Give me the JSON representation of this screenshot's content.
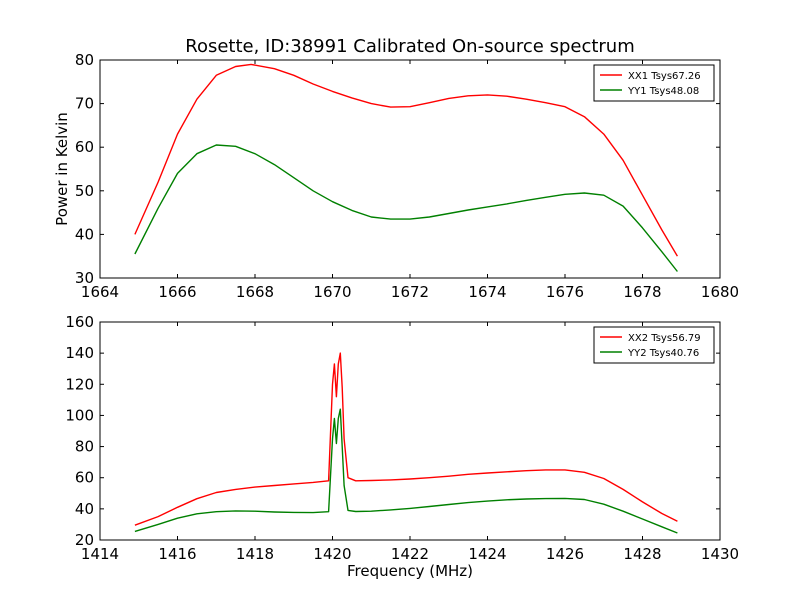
{
  "chart_data": [
    {
      "type": "line",
      "title": "Rosette, ID:38991 Calibrated On-source spectrum",
      "xlabel": "",
      "ylabel": "Power in Kelvin",
      "xlim": [
        1664,
        1680
      ],
      "ylim": [
        30,
        80
      ],
      "xticks": [
        "1664",
        "1666",
        "1668",
        "1670",
        "1672",
        "1674",
        "1676",
        "1678",
        "1680"
      ],
      "yticks": [
        "30",
        "40",
        "50",
        "60",
        "70",
        "80"
      ],
      "grid": false,
      "legend": "top-right",
      "series": [
        {
          "name": "XX1 Tsys67.26",
          "color": "#ff0000",
          "x": [
            1664.9,
            1665.5,
            1666.0,
            1666.5,
            1667.0,
            1667.5,
            1667.9,
            1668.5,
            1669.0,
            1669.5,
            1670.0,
            1670.5,
            1671.0,
            1671.5,
            1672.0,
            1672.5,
            1673.0,
            1673.5,
            1674.0,
            1674.5,
            1675.0,
            1675.5,
            1676.0,
            1676.5,
            1677.0,
            1677.5,
            1678.0,
            1678.5,
            1678.9
          ],
          "y": [
            40.0,
            52.0,
            63.0,
            71.0,
            76.5,
            78.5,
            79.0,
            78.0,
            76.5,
            74.5,
            72.8,
            71.3,
            70.0,
            69.2,
            69.3,
            70.2,
            71.2,
            71.8,
            72.0,
            71.7,
            71.0,
            70.2,
            69.3,
            67.0,
            63.0,
            57.0,
            49.0,
            41.0,
            35.0
          ]
        },
        {
          "name": "YY1 Tsys48.08",
          "color": "#008000",
          "x": [
            1664.9,
            1665.5,
            1666.0,
            1666.5,
            1667.0,
            1667.5,
            1668.0,
            1668.5,
            1669.0,
            1669.5,
            1670.0,
            1670.5,
            1671.0,
            1671.5,
            1672.0,
            1672.5,
            1673.0,
            1673.5,
            1674.0,
            1674.5,
            1675.0,
            1675.5,
            1676.0,
            1676.5,
            1677.0,
            1677.5,
            1678.0,
            1678.5,
            1678.9
          ],
          "y": [
            35.5,
            46.0,
            54.0,
            58.5,
            60.5,
            60.2,
            58.5,
            56.0,
            53.0,
            50.0,
            47.5,
            45.5,
            44.0,
            43.5,
            43.5,
            44.0,
            44.8,
            45.6,
            46.3,
            47.0,
            47.8,
            48.5,
            49.2,
            49.5,
            49.0,
            46.5,
            41.5,
            36.0,
            31.5
          ]
        }
      ]
    },
    {
      "type": "line",
      "title": "",
      "xlabel": "Frequency (MHz)",
      "ylabel": "",
      "xlim": [
        1414,
        1430
      ],
      "ylim": [
        20,
        160
      ],
      "xticks": [
        "1414",
        "1416",
        "1418",
        "1420",
        "1422",
        "1424",
        "1426",
        "1428",
        "1430"
      ],
      "yticks": [
        "20",
        "40",
        "60",
        "80",
        "100",
        "120",
        "140",
        "160"
      ],
      "grid": false,
      "legend": "top-right",
      "series": [
        {
          "name": "XX2 Tsys56.79",
          "color": "#ff0000",
          "x": [
            1414.9,
            1415.5,
            1416.0,
            1416.5,
            1417.0,
            1417.5,
            1418.0,
            1418.5,
            1419.0,
            1419.5,
            1419.9,
            1420.0,
            1420.05,
            1420.1,
            1420.15,
            1420.2,
            1420.25,
            1420.3,
            1420.4,
            1420.6,
            1421.0,
            1421.5,
            1422.0,
            1422.5,
            1423.0,
            1423.5,
            1424.0,
            1424.5,
            1425.0,
            1425.5,
            1426.0,
            1426.5,
            1427.0,
            1427.5,
            1428.0,
            1428.5,
            1428.9
          ],
          "y": [
            29.5,
            35.0,
            41.0,
            46.5,
            50.5,
            52.5,
            54.0,
            55.0,
            56.0,
            57.0,
            58.0,
            120.0,
            133.0,
            112.0,
            133.0,
            140.0,
            118.0,
            85.0,
            60.0,
            58.0,
            58.2,
            58.6,
            59.2,
            60.0,
            61.0,
            62.2,
            63.0,
            63.8,
            64.5,
            65.0,
            65.0,
            63.5,
            59.5,
            52.5,
            44.5,
            37.0,
            32.0
          ]
        },
        {
          "name": "YY2 Tsys40.76",
          "color": "#008000",
          "x": [
            1414.9,
            1415.5,
            1416.0,
            1416.5,
            1417.0,
            1417.5,
            1418.0,
            1418.5,
            1419.0,
            1419.5,
            1419.9,
            1420.0,
            1420.05,
            1420.1,
            1420.15,
            1420.2,
            1420.25,
            1420.3,
            1420.4,
            1420.6,
            1421.0,
            1421.5,
            1422.0,
            1422.5,
            1423.0,
            1423.5,
            1424.0,
            1424.5,
            1425.0,
            1425.5,
            1426.0,
            1426.5,
            1427.0,
            1427.5,
            1428.0,
            1428.5,
            1428.9
          ],
          "y": [
            25.5,
            30.0,
            34.0,
            36.8,
            38.2,
            38.7,
            38.5,
            38.0,
            37.7,
            37.6,
            38.2,
            85.0,
            98.0,
            82.0,
            98.0,
            104.0,
            80.0,
            55.0,
            39.0,
            38.3,
            38.5,
            39.3,
            40.3,
            41.5,
            42.8,
            44.0,
            45.0,
            45.8,
            46.3,
            46.6,
            46.7,
            46.0,
            43.0,
            38.5,
            33.5,
            28.5,
            24.5
          ]
        }
      ]
    }
  ]
}
